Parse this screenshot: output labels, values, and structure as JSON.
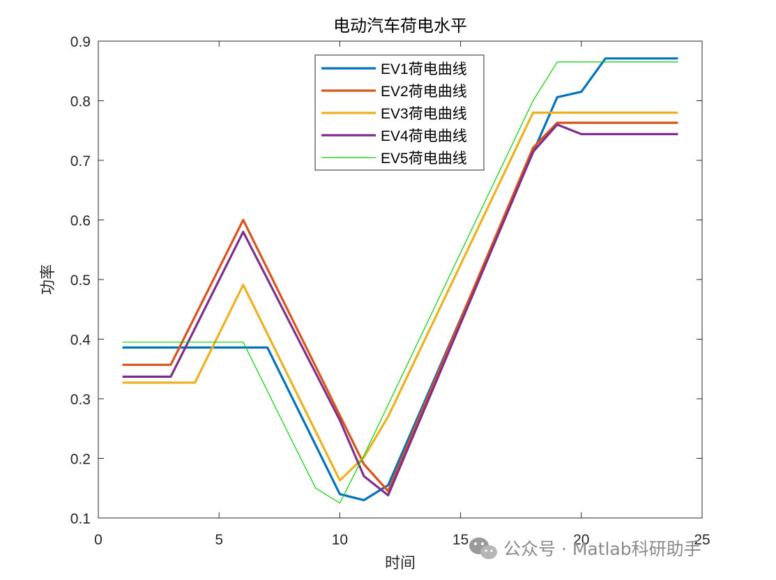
{
  "chart_data": {
    "type": "line",
    "title": "电动汽车荷电水平",
    "xlabel": "时间",
    "ylabel": "功率",
    "xlim": [
      0,
      25
    ],
    "ylim": [
      0.1,
      0.9
    ],
    "xticks": [
      0,
      5,
      10,
      15,
      20,
      25
    ],
    "yticks": [
      0.1,
      0.2,
      0.3,
      0.4,
      0.5,
      0.6,
      0.7,
      0.8,
      0.9
    ],
    "xtick_labels": [
      "0",
      "5",
      "10",
      "15",
      "20",
      "25"
    ],
    "ytick_labels": [
      "0.1",
      "0.2",
      "0.3",
      "0.4",
      "0.5",
      "0.6",
      "0.7",
      "0.8",
      "0.9"
    ],
    "grid": false,
    "legend_position": "top-center",
    "series": [
      {
        "name": "EV1荷电曲线",
        "color": "#0072BD",
        "x": [
          1,
          2,
          3,
          4,
          5,
          6,
          7,
          8,
          9,
          10,
          11,
          12,
          13,
          14,
          15,
          16,
          17,
          18,
          19,
          20,
          21,
          22,
          23,
          24
        ],
        "y": [
          0.386,
          0.386,
          0.386,
          0.386,
          0.386,
          0.386,
          0.386,
          0.304,
          0.222,
          0.14,
          0.13,
          0.155,
          0.248,
          0.341,
          0.434,
          0.527,
          0.62,
          0.713,
          0.806,
          0.815,
          0.871,
          0.871,
          0.871,
          0.871
        ]
      },
      {
        "name": "EV2荷电曲线",
        "color": "#D95319",
        "x": [
          1,
          2,
          3,
          4,
          5,
          6,
          7,
          8,
          9,
          10,
          11,
          12,
          13,
          14,
          15,
          16,
          17,
          18,
          19,
          20,
          21,
          22,
          23,
          24
        ],
        "y": [
          0.357,
          0.357,
          0.357,
          0.438,
          0.519,
          0.6,
          0.518,
          0.436,
          0.354,
          0.272,
          0.19,
          0.145,
          0.241,
          0.337,
          0.433,
          0.529,
          0.625,
          0.721,
          0.763,
          0.763,
          0.763,
          0.763,
          0.763,
          0.763
        ]
      },
      {
        "name": "EV3荷电曲线",
        "color": "#EDB120",
        "x": [
          1,
          2,
          3,
          4,
          5,
          6,
          7,
          8,
          9,
          10,
          11,
          12,
          13,
          14,
          15,
          16,
          17,
          18,
          19,
          20,
          21,
          22,
          23,
          24
        ],
        "y": [
          0.327,
          0.327,
          0.327,
          0.327,
          0.409,
          0.491,
          0.409,
          0.327,
          0.245,
          0.163,
          0.202,
          0.27,
          0.355,
          0.44,
          0.525,
          0.61,
          0.695,
          0.78,
          0.78,
          0.78,
          0.78,
          0.78,
          0.78,
          0.78
        ]
      },
      {
        "name": "EV4荷电曲线",
        "color": "#7E2F8E",
        "x": [
          1,
          2,
          3,
          4,
          5,
          6,
          7,
          8,
          9,
          10,
          11,
          12,
          13,
          14,
          15,
          16,
          17,
          18,
          19,
          20,
          21,
          22,
          23,
          24
        ],
        "y": [
          0.337,
          0.337,
          0.337,
          0.418,
          0.499,
          0.58,
          0.501,
          0.422,
          0.343,
          0.264,
          0.17,
          0.138,
          0.234,
          0.33,
          0.426,
          0.522,
          0.618,
          0.714,
          0.76,
          0.744,
          0.744,
          0.744,
          0.744,
          0.744
        ]
      },
      {
        "name": "EV5荷电曲线",
        "color": "#00D000",
        "thin": true,
        "x": [
          1,
          2,
          3,
          4,
          5,
          6,
          7,
          8,
          9,
          10,
          11,
          12,
          13,
          14,
          15,
          16,
          17,
          18,
          19,
          20,
          21,
          22,
          23,
          24
        ],
        "y": [
          0.395,
          0.395,
          0.395,
          0.395,
          0.395,
          0.395,
          0.313,
          0.231,
          0.15,
          0.125,
          0.205,
          0.29,
          0.375,
          0.46,
          0.545,
          0.63,
          0.715,
          0.8,
          0.865,
          0.865,
          0.865,
          0.865,
          0.865,
          0.865
        ]
      }
    ]
  },
  "watermark": {
    "text": "公众号 · Matlab科研助手",
    "icon": "wechat-icon"
  }
}
